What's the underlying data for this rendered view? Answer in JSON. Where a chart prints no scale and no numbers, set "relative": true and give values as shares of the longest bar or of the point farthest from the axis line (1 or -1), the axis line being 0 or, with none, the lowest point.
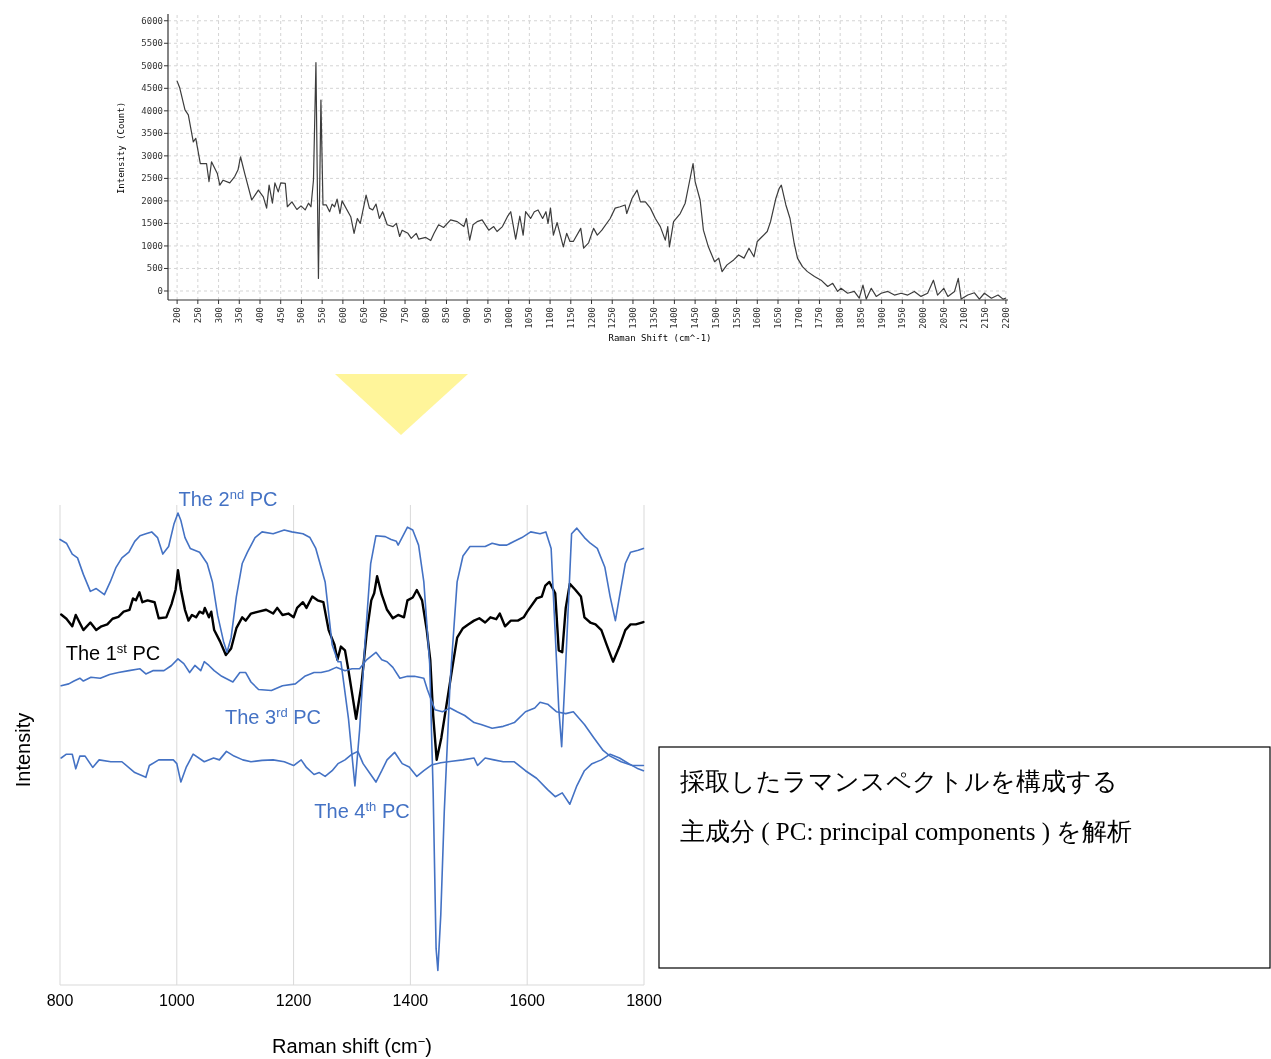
{
  "chart_data": [
    {
      "type": "line",
      "xlabel": "Raman Shift (cm^-1)",
      "ylabel": "Intensity (Count)",
      "xlim": [
        178,
        2205
      ],
      "ylim": [
        -200,
        6150
      ],
      "xticks": [
        200,
        250,
        300,
        350,
        400,
        450,
        500,
        550,
        600,
        650,
        700,
        750,
        800,
        850,
        900,
        950,
        1000,
        1050,
        1100,
        1150,
        1200,
        1250,
        1300,
        1350,
        1400,
        1450,
        1500,
        1550,
        1600,
        1650,
        1700,
        1750,
        1800,
        1850,
        1900,
        1950,
        2000,
        2050,
        2100,
        2150,
        2200
      ],
      "yticks": [
        0,
        500,
        1000,
        1500,
        2000,
        2500,
        3000,
        3500,
        4000,
        4500,
        5000,
        5500,
        6000
      ],
      "grid": true,
      "series": [
        {
          "color": "#3c3c3c",
          "x": [
            200,
            206,
            219,
            227,
            239,
            245,
            256,
            271,
            277,
            283,
            297,
            303,
            311,
            327,
            339,
            347,
            353,
            364,
            380,
            396,
            408,
            416,
            422,
            430,
            436,
            444,
            450,
            461,
            466,
            477,
            489,
            499,
            509,
            517,
            523,
            529,
            535,
            541,
            547,
            552,
            560,
            568,
            574,
            580,
            586,
            593,
            598,
            619,
            627,
            635,
            642,
            656,
            664,
            672,
            680,
            688,
            696,
            707,
            721,
            729,
            737,
            743,
            757,
            765,
            777,
            783,
            800,
            812,
            820,
            831,
            843,
            860,
            876,
            892,
            898,
            906,
            914,
            924,
            936,
            952,
            964,
            972,
            985,
            997,
            1005,
            1017,
            1027,
            1035,
            1041,
            1053,
            1062,
            1071,
            1082,
            1090,
            1095,
            1101,
            1108,
            1117,
            1132,
            1140,
            1148,
            1156,
            1174,
            1181,
            1193,
            1205,
            1214,
            1225,
            1245,
            1257,
            1269,
            1281,
            1285,
            1298,
            1310,
            1318,
            1330,
            1342,
            1354,
            1366,
            1378,
            1384,
            1388,
            1398,
            1414,
            1426,
            1434,
            1445,
            1450,
            1462,
            1470,
            1482,
            1497,
            1507,
            1515,
            1527,
            1543,
            1555,
            1568,
            1580,
            1592,
            1600,
            1612,
            1624,
            1632,
            1645,
            1653,
            1658,
            1669,
            1679,
            1689,
            1697,
            1709,
            1721,
            1738,
            1754,
            1770,
            1782,
            1794,
            1802,
            1818,
            1834,
            1846,
            1855,
            1863,
            1875,
            1887,
            1899,
            1915,
            1931,
            1947,
            1963,
            1979,
            1995,
            2011,
            2025,
            2035,
            2050,
            2060,
            2076,
            2085,
            2092,
            2108,
            2124,
            2136,
            2148,
            2165,
            2181,
            2193,
            2199
          ],
          "values": [
            4660,
            4520,
            4020,
            3910,
            3310,
            3390,
            2830,
            2830,
            2430,
            2870,
            2610,
            2350,
            2460,
            2400,
            2540,
            2690,
            2980,
            2580,
            2020,
            2240,
            2090,
            1840,
            2350,
            1950,
            2400,
            2200,
            2400,
            2390,
            1870,
            1980,
            1810,
            1890,
            1800,
            1950,
            1870,
            2460,
            5070,
            280,
            4240,
            1910,
            1910,
            1760,
            1930,
            1870,
            2040,
            1720,
            2000,
            1650,
            1280,
            1610,
            1500,
            2130,
            1840,
            1800,
            1930,
            1610,
            1760,
            1470,
            1430,
            1500,
            1210,
            1350,
            1280,
            1170,
            1280,
            1150,
            1190,
            1120,
            1280,
            1470,
            1410,
            1580,
            1540,
            1430,
            1610,
            1130,
            1470,
            1540,
            1580,
            1350,
            1430,
            1320,
            1430,
            1650,
            1760,
            1150,
            1660,
            1240,
            1760,
            1610,
            1760,
            1800,
            1610,
            1760,
            1500,
            1840,
            1240,
            1520,
            980,
            1280,
            1100,
            1100,
            1390,
            950,
            1070,
            1390,
            1240,
            1350,
            1610,
            1840,
            1870,
            1910,
            1720,
            2060,
            2240,
            1980,
            1980,
            1840,
            1610,
            1430,
            1130,
            1430,
            980,
            1540,
            1720,
            1950,
            2320,
            2830,
            2430,
            2020,
            1350,
            980,
            650,
            730,
            430,
            580,
            690,
            800,
            730,
            950,
            760,
            1100,
            1210,
            1320,
            1540,
            2060,
            2280,
            2350,
            1910,
            1610,
            1060,
            730,
            540,
            430,
            320,
            240,
            100,
            170,
            -10,
            60,
            -50,
            -10,
            -160,
            130,
            -180,
            60,
            -120,
            -50,
            -10,
            -90,
            -50,
            -90,
            -10,
            -120,
            -50,
            240,
            -90,
            60,
            -120,
            -10,
            280,
            -180,
            -90,
            -40,
            -180,
            -50,
            -160,
            -90,
            -180,
            -160
          ]
        }
      ]
    },
    {
      "type": "line",
      "xlabel": "Raman shift (cm$^{−}$)",
      "ylabel": "Intensity",
      "relative": true,
      "xlim": [
        800,
        1800
      ],
      "xticks": [
        800,
        1000,
        1200,
        1400,
        1600,
        1800
      ],
      "grid": "x",
      "tick_labels": "x",
      "series": [
        {
          "name": "The 1$^{st}$ PC",
          "color": "#000000",
          "x": [
            802,
            811,
            821,
            827,
            840,
            852,
            862,
            871,
            881,
            890,
            900,
            909,
            919,
            925,
            930,
            936,
            941,
            950,
            962,
            969,
            982,
            991,
            998,
            1002,
            1007,
            1014,
            1020,
            1026,
            1033,
            1039,
            1045,
            1048,
            1055,
            1059,
            1064,
            1074,
            1084,
            1093,
            1102,
            1112,
            1118,
            1127,
            1140,
            1153,
            1165,
            1172,
            1181,
            1191,
            1200,
            1206,
            1216,
            1222,
            1232,
            1241,
            1251,
            1260,
            1270,
            1275,
            1281,
            1288,
            1294,
            1307,
            1316,
            1325,
            1333,
            1338,
            1343,
            1351,
            1360,
            1370,
            1379,
            1389,
            1395,
            1404,
            1411,
            1420,
            1428,
            1434,
            1439,
            1445,
            1453,
            1461,
            1471,
            1480,
            1490,
            1499,
            1509,
            1518,
            1528,
            1537,
            1547,
            1553,
            1562,
            1572,
            1584,
            1594,
            1600,
            1616,
            1625,
            1631,
            1638,
            1648,
            1654,
            1660,
            1666,
            1673,
            1682,
            1692,
            1698,
            1708,
            1717,
            1727,
            1736,
            1747,
            1758,
            1768,
            1777,
            1786,
            1799
          ],
          "values": [
            0.785,
            0.776,
            0.76,
            0.784,
            0.752,
            0.768,
            0.752,
            0.76,
            0.764,
            0.776,
            0.78,
            0.791,
            0.795,
            0.819,
            0.815,
            0.832,
            0.811,
            0.815,
            0.811,
            0.777,
            0.779,
            0.807,
            0.838,
            0.879,
            0.838,
            0.795,
            0.772,
            0.784,
            0.779,
            0.791,
            0.787,
            0.799,
            0.779,
            0.791,
            0.752,
            0.728,
            0.699,
            0.713,
            0.756,
            0.779,
            0.772,
            0.787,
            0.791,
            0.795,
            0.787,
            0.799,
            0.784,
            0.787,
            0.779,
            0.799,
            0.811,
            0.799,
            0.823,
            0.815,
            0.811,
            0.752,
            0.721,
            0.689,
            0.717,
            0.709,
            0.666,
            0.564,
            0.634,
            0.744,
            0.815,
            0.83,
            0.866,
            0.827,
            0.795,
            0.777,
            0.784,
            0.779,
            0.815,
            0.821,
            0.837,
            0.815,
            0.752,
            0.689,
            0.571,
            0.477,
            0.524,
            0.587,
            0.666,
            0.736,
            0.756,
            0.764,
            0.772,
            0.777,
            0.768,
            0.779,
            0.775,
            0.787,
            0.76,
            0.772,
            0.772,
            0.779,
            0.791,
            0.819,
            0.823,
            0.846,
            0.854,
            0.83,
            0.709,
            0.705,
            0.799,
            0.85,
            0.838,
            0.823,
            0.779,
            0.768,
            0.764,
            0.752,
            0.721,
            0.685,
            0.717,
            0.752,
            0.764,
            0.764,
            0.769
          ]
        },
        {
          "name": "The 2$^{nd}$ PC",
          "color": "#4472c4",
          "x": [
            800,
            811,
            821,
            830,
            840,
            852,
            862,
            876,
            886,
            896,
            906,
            918,
            928,
            937,
            947,
            957,
            967,
            976,
            986,
            995,
            1002,
            1007,
            1014,
            1023,
            1039,
            1052,
            1061,
            1070,
            1080,
            1086,
            1093,
            1102,
            1112,
            1121,
            1134,
            1146,
            1165,
            1184,
            1197,
            1216,
            1228,
            1238,
            1247,
            1254,
            1266,
            1276,
            1281,
            1294,
            1305,
            1313,
            1322,
            1332,
            1341,
            1357,
            1367,
            1376,
            1379,
            1389,
            1395,
            1404,
            1414,
            1423,
            1433,
            1439,
            1444,
            1447,
            1452,
            1458,
            1468,
            1480,
            1490,
            1502,
            1515,
            1528,
            1540,
            1553,
            1565,
            1578,
            1591,
            1606,
            1622,
            1632,
            1641,
            1648,
            1654,
            1659,
            1666,
            1676,
            1685,
            1698,
            1708,
            1720,
            1733,
            1742,
            1751,
            1758,
            1768,
            1777,
            1790,
            1799
          ],
          "values": [
            0.944,
            0.936,
            0.913,
            0.905,
            0.87,
            0.834,
            0.84,
            0.827,
            0.854,
            0.885,
            0.905,
            0.917,
            0.94,
            0.952,
            0.956,
            0.96,
            0.948,
            0.913,
            0.929,
            0.976,
            1,
            0.984,
            0.948,
            0.925,
            0.917,
            0.893,
            0.854,
            0.783,
            0.728,
            0.705,
            0.736,
            0.823,
            0.893,
            0.917,
            0.948,
            0.96,
            0.956,
            0.964,
            0.96,
            0.956,
            0.948,
            0.925,
            0.885,
            0.854,
            0.721,
            0.685,
            0.685,
            0.564,
            0.422,
            0.54,
            0.721,
            0.893,
            0.952,
            0.95,
            0.944,
            0.94,
            0.932,
            0.956,
            0.97,
            0.964,
            0.932,
            0.854,
            0.681,
            0.407,
            0.077,
            0.031,
            0.148,
            0.367,
            0.642,
            0.854,
            0.909,
            0.929,
            0.929,
            0.929,
            0.936,
            0.932,
            0.932,
            0.94,
            0.948,
            0.96,
            0.956,
            0.96,
            0.925,
            0.744,
            0.587,
            0.505,
            0.681,
            0.956,
            0.968,
            0.948,
            0.936,
            0.925,
            0.885,
            0.823,
            0.772,
            0.823,
            0.893,
            0.917,
            0.921,
            0.925
          ]
        },
        {
          "name": "The 3$^{rd}$ PC",
          "color": "#4472c4",
          "x": [
            802,
            815,
            824,
            834,
            840,
            853,
            869,
            885,
            900,
            918,
            937,
            947,
            959,
            978,
            991,
            1002,
            1012,
            1022,
            1031,
            1041,
            1047,
            1055,
            1064,
            1077,
            1096,
            1108,
            1118,
            1127,
            1140,
            1162,
            1181,
            1203,
            1219,
            1235,
            1247,
            1260,
            1273,
            1288,
            1300,
            1313,
            1325,
            1341,
            1351,
            1360,
            1370,
            1382,
            1395,
            1407,
            1423,
            1429,
            1442,
            1455,
            1468,
            1480,
            1493,
            1509,
            1521,
            1540,
            1559,
            1578,
            1597,
            1613,
            1622,
            1635,
            1650,
            1666,
            1679,
            1698,
            1714,
            1730,
            1742,
            1761,
            1780,
            1799
          ],
          "values": [
            0.634,
            0.638,
            0.644,
            0.65,
            0.644,
            0.652,
            0.65,
            0.658,
            0.662,
            0.666,
            0.67,
            0.659,
            0.666,
            0.666,
            0.677,
            0.691,
            0.681,
            0.662,
            0.677,
            0.666,
            0.685,
            0.677,
            0.666,
            0.654,
            0.642,
            0.662,
            0.662,
            0.642,
            0.626,
            0.624,
            0.634,
            0.638,
            0.654,
            0.662,
            0.662,
            0.666,
            0.673,
            0.666,
            0.67,
            0.67,
            0.689,
            0.705,
            0.689,
            0.685,
            0.673,
            0.65,
            0.654,
            0.654,
            0.65,
            0.626,
            0.583,
            0.579,
            0.587,
            0.579,
            0.571,
            0.556,
            0.552,
            0.544,
            0.548,
            0.556,
            0.579,
            0.587,
            0.599,
            0.595,
            0.579,
            0.575,
            0.579,
            0.552,
            0.524,
            0.497,
            0.485,
            0.473,
            0.465,
            0.465
          ]
        },
        {
          "name": "The 4$^{th}$ PC",
          "color": "#4472c4",
          "x": [
            802,
            811,
            821,
            827,
            834,
            843,
            856,
            867,
            887,
            906,
            928,
            947,
            953,
            969,
            994,
            1000,
            1007,
            1016,
            1028,
            1047,
            1063,
            1073,
            1085,
            1098,
            1113,
            1127,
            1146,
            1165,
            1184,
            1200,
            1213,
            1222,
            1235,
            1244,
            1254,
            1266,
            1276,
            1288,
            1300,
            1310,
            1319,
            1332,
            1341,
            1351,
            1360,
            1373,
            1386,
            1398,
            1411,
            1423,
            1436,
            1452,
            1471,
            1490,
            1509,
            1515,
            1528,
            1543,
            1559,
            1578,
            1597,
            1616,
            1635,
            1648,
            1660,
            1673,
            1685,
            1698,
            1711,
            1727,
            1742,
            1758,
            1774,
            1790,
            1799
          ],
          "values": [
            0.481,
            0.489,
            0.489,
            0.458,
            0.485,
            0.485,
            0.461,
            0.477,
            0.473,
            0.473,
            0.45,
            0.44,
            0.465,
            0.477,
            0.477,
            0.469,
            0.43,
            0.461,
            0.489,
            0.473,
            0.481,
            0.477,
            0.495,
            0.485,
            0.477,
            0.473,
            0.476,
            0.477,
            0.473,
            0.465,
            0.477,
            0.461,
            0.446,
            0.45,
            0.442,
            0.454,
            0.469,
            0.477,
            0.489,
            0.495,
            0.469,
            0.446,
            0.43,
            0.454,
            0.477,
            0.493,
            0.469,
            0.462,
            0.442,
            0.454,
            0.466,
            0.471,
            0.474,
            0.477,
            0.481,
            0.465,
            0.481,
            0.477,
            0.473,
            0.473,
            0.454,
            0.438,
            0.414,
            0.399,
            0.407,
            0.383,
            0.422,
            0.454,
            0.469,
            0.477,
            0.489,
            0.481,
            0.469,
            0.458,
            0.454
          ]
        }
      ]
    },
    {
      "type": "other",
      "annotations": [
        "採取したラマンスペクトルを構成する",
        "主成分 ( PC: principal components ) を解析"
      ]
    }
  ]
}
